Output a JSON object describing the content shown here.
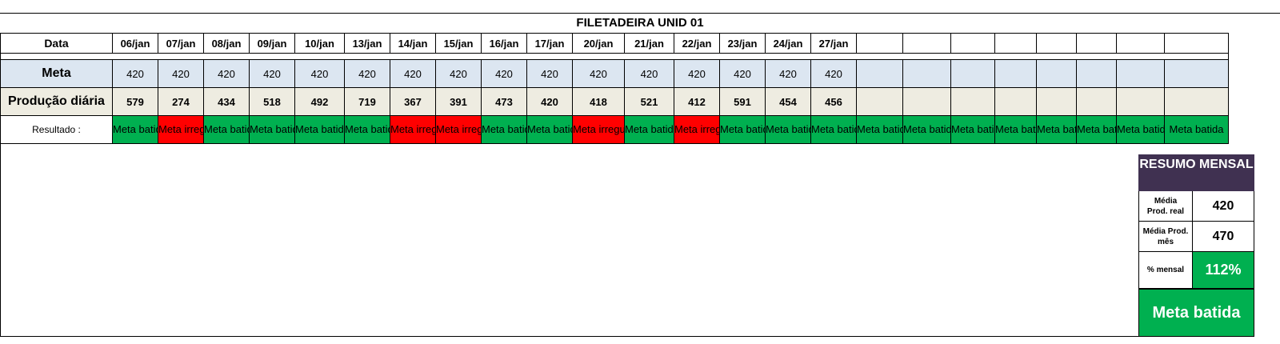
{
  "sheet": {
    "title": "FILETADEIRA UNID 01",
    "row_labels": {
      "date": "Data",
      "meta": "Meta",
      "production": "Produção diária",
      "result": "Resultado :"
    },
    "dates": [
      "06/jan",
      "07/jan",
      "08/jan",
      "09/jan",
      "10/jan",
      "13/jan",
      "14/jan",
      "15/jan",
      "16/jan",
      "17/jan",
      "20/jan",
      "21/jan",
      "22/jan",
      "23/jan",
      "24/jan",
      "27/jan",
      "",
      "",
      "",
      "",
      "",
      "",
      "",
      ""
    ],
    "meta": [
      "420",
      "420",
      "420",
      "420",
      "420",
      "420",
      "420",
      "420",
      "420",
      "420",
      "420",
      "420",
      "420",
      "420",
      "420",
      "420",
      "",
      "",
      "",
      "",
      "",
      "",
      "",
      ""
    ],
    "production": [
      "579",
      "274",
      "434",
      "518",
      "492",
      "719",
      "367",
      "391",
      "473",
      "420",
      "418",
      "521",
      "412",
      "591",
      "454",
      "456",
      "",
      "",
      "",
      "",
      "",
      "",
      "",
      ""
    ],
    "results": [
      {
        "text": "Meta batida",
        "status": "ok"
      },
      {
        "text": "Meta irregular",
        "status": "bad"
      },
      {
        "text": "Meta batida",
        "status": "ok"
      },
      {
        "text": "Meta batida",
        "status": "ok"
      },
      {
        "text": "Meta batida",
        "status": "ok"
      },
      {
        "text": "Meta batida",
        "status": "ok"
      },
      {
        "text": "Meta irregular",
        "status": "bad"
      },
      {
        "text": "Meta irregular",
        "status": "bad"
      },
      {
        "text": "Meta batida",
        "status": "ok"
      },
      {
        "text": "Meta batida",
        "status": "ok"
      },
      {
        "text": "Meta irregular",
        "status": "bad"
      },
      {
        "text": "Meta batida",
        "status": "ok"
      },
      {
        "text": "Meta irregular",
        "status": "bad"
      },
      {
        "text": "Meta batida",
        "status": "ok"
      },
      {
        "text": "Meta batida",
        "status": "ok"
      },
      {
        "text": "Meta batida",
        "status": "ok"
      },
      {
        "text": "Meta batida",
        "status": "ok"
      },
      {
        "text": "Meta batida",
        "status": "ok"
      },
      {
        "text": "Meta batida",
        "status": "ok"
      },
      {
        "text": "Meta batida",
        "status": "ok"
      },
      {
        "text": "Meta batida",
        "status": "ok"
      },
      {
        "text": "Meta batida",
        "status": "ok"
      },
      {
        "text": "Meta batida",
        "status": "ok"
      },
      {
        "text": "Meta batida",
        "status": "ok"
      }
    ]
  },
  "summary": {
    "title": "RESUMO MENSAL",
    "avg_real_label": "Média\nProd. real",
    "avg_real_value": "420",
    "avg_month_label": "Média Prod.\nmês",
    "avg_month_value": "470",
    "pct_label": "% mensal",
    "pct_value": "112%",
    "final": "Meta batida"
  },
  "colors": {
    "ok": "#00b050",
    "bad": "#ff0000",
    "meta_row": "#dce6f1",
    "production_row": "#eeece1",
    "summary_header": "#403151"
  }
}
